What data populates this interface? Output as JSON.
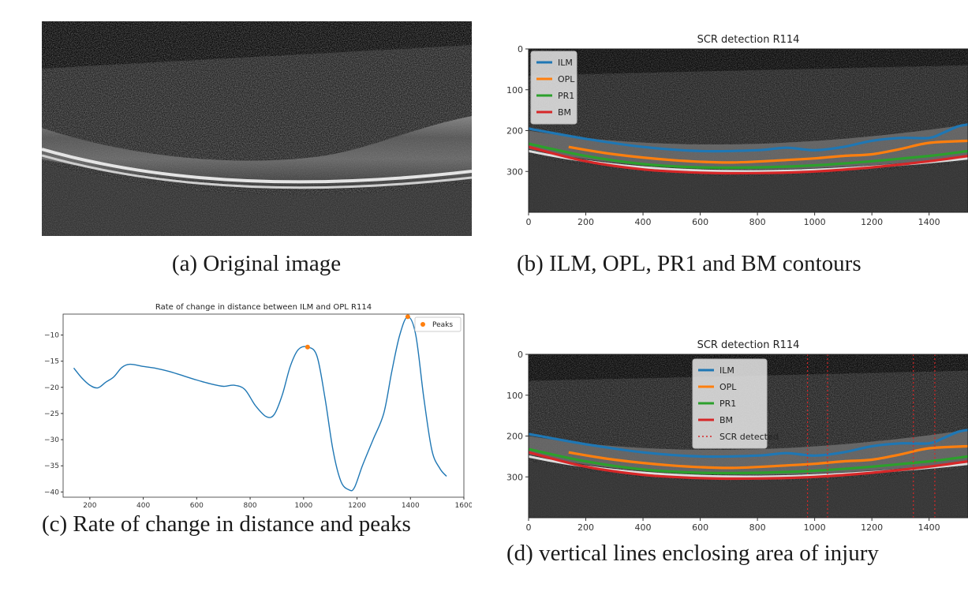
{
  "panel_a": {
    "caption": "(a) Original image"
  },
  "panel_b": {
    "caption": "(b) ILM, OPL, PR1 and BM contours",
    "chart_data": {
      "type": "line",
      "title": "SCR detection R114",
      "xlim": [
        0,
        1536
      ],
      "ylim": [
        400,
        0
      ],
      "x_ticks": [
        0,
        200,
        400,
        600,
        800,
        1000,
        1200,
        1400
      ],
      "y_ticks": [
        0,
        100,
        200,
        300
      ],
      "legend_position": "upper-left",
      "series": [
        {
          "name": "ILM",
          "color": "#1f77b4",
          "x": [
            0,
            200,
            400,
            600,
            800,
            900,
            1000,
            1100,
            1200,
            1300,
            1400,
            1450,
            1500,
            1536
          ],
          "y": [
            195,
            220,
            240,
            250,
            248,
            242,
            248,
            240,
            225,
            218,
            218,
            205,
            190,
            185
          ]
        },
        {
          "name": "OPL",
          "color": "#ff7f0e",
          "x": [
            140,
            300,
            500,
            700,
            900,
            1000,
            1100,
            1200,
            1300,
            1400,
            1536
          ],
          "y": [
            240,
            258,
            272,
            278,
            272,
            268,
            262,
            258,
            245,
            230,
            225
          ]
        },
        {
          "name": "PR1",
          "color": "#2ca02c",
          "x": [
            0,
            200,
            400,
            600,
            800,
            1000,
            1200,
            1400,
            1536
          ],
          "y": [
            232,
            262,
            282,
            290,
            290,
            285,
            275,
            262,
            250
          ]
        },
        {
          "name": "BM",
          "color": "#d62728",
          "x": [
            0,
            200,
            400,
            600,
            800,
            1000,
            1200,
            1400,
            1536
          ],
          "y": [
            240,
            275,
            295,
            303,
            304,
            300,
            290,
            275,
            262
          ]
        }
      ]
    }
  },
  "panel_c": {
    "caption": "(c) Rate of change in distance and peaks",
    "chart_data": {
      "type": "line",
      "title": "Rate of change in distance between ILM and OPL R114",
      "xlim": [
        100,
        1600
      ],
      "ylim": [
        -41,
        -6
      ],
      "x_ticks": [
        200,
        400,
        600,
        800,
        1000,
        1200,
        1400,
        1600
      ],
      "y_ticks": [
        -10,
        -15,
        -20,
        -25,
        -30,
        -35,
        -40
      ],
      "legend_position": "upper-right",
      "series": [
        {
          "name": "",
          "color": "#1f77b4",
          "x": [
            140,
            170,
            200,
            230,
            260,
            290,
            320,
            350,
            400,
            450,
            500,
            550,
            600,
            650,
            700,
            740,
            780,
            820,
            860,
            890,
            920,
            950,
            980,
            1015,
            1050,
            1080,
            1110,
            1140,
            1170,
            1190,
            1220,
            1260,
            1300,
            1330,
            1360,
            1390,
            1420,
            1450,
            1480,
            1510,
            1535
          ],
          "y": [
            -16.3,
            -18.2,
            -19.6,
            -20.1,
            -19.0,
            -18.0,
            -16.2,
            -15.6,
            -16.0,
            -16.4,
            -17.0,
            -17.8,
            -18.6,
            -19.3,
            -19.8,
            -19.6,
            -20.4,
            -23.5,
            -25.6,
            -25.2,
            -21.5,
            -16.0,
            -12.8,
            -12.3,
            -14.0,
            -22.0,
            -32.0,
            -38.0,
            -39.6,
            -39.2,
            -35.0,
            -30.0,
            -25.0,
            -17.0,
            -10.0,
            -6.5,
            -10.0,
            -22.0,
            -32.0,
            -35.5,
            -37.0
          ]
        },
        {
          "name": "Peaks",
          "color": "#ff7f0e",
          "marker": "dot",
          "x": [
            1015,
            1390
          ],
          "y": [
            -12.3,
            -6.5
          ]
        }
      ]
    }
  },
  "panel_d": {
    "caption": "(d) vertical lines enclosing area of injury",
    "chart_data": {
      "type": "line",
      "title": "SCR detection R114",
      "xlim": [
        0,
        1536
      ],
      "ylim": [
        400,
        0
      ],
      "x_ticks": [
        0,
        200,
        400,
        600,
        800,
        1000,
        1200,
        1400
      ],
      "y_ticks": [
        0,
        100,
        200,
        300
      ],
      "legend_position": "upper-center",
      "series": [
        {
          "name": "ILM",
          "color": "#1f77b4",
          "x": [
            0,
            200,
            400,
            600,
            800,
            900,
            1000,
            1100,
            1200,
            1300,
            1400,
            1450,
            1500,
            1536
          ],
          "y": [
            195,
            220,
            240,
            250,
            248,
            242,
            248,
            240,
            225,
            218,
            218,
            205,
            190,
            185
          ]
        },
        {
          "name": "OPL",
          "color": "#ff7f0e",
          "x": [
            140,
            300,
            500,
            700,
            900,
            1000,
            1100,
            1200,
            1300,
            1400,
            1536
          ],
          "y": [
            240,
            258,
            272,
            278,
            272,
            268,
            262,
            258,
            245,
            230,
            225
          ]
        },
        {
          "name": "PR1",
          "color": "#2ca02c",
          "x": [
            0,
            200,
            400,
            600,
            800,
            1000,
            1200,
            1400,
            1536
          ],
          "y": [
            232,
            262,
            282,
            290,
            290,
            285,
            275,
            262,
            250
          ]
        },
        {
          "name": "BM",
          "color": "#d62728",
          "x": [
            0,
            200,
            400,
            600,
            800,
            1000,
            1200,
            1400,
            1536
          ],
          "y": [
            240,
            275,
            295,
            303,
            304,
            300,
            290,
            275,
            262
          ]
        },
        {
          "name": "SCR detected",
          "color": "#d62728",
          "style": "dotted",
          "vlines_x": [
            975,
            1045,
            1345,
            1420
          ]
        }
      ]
    }
  }
}
